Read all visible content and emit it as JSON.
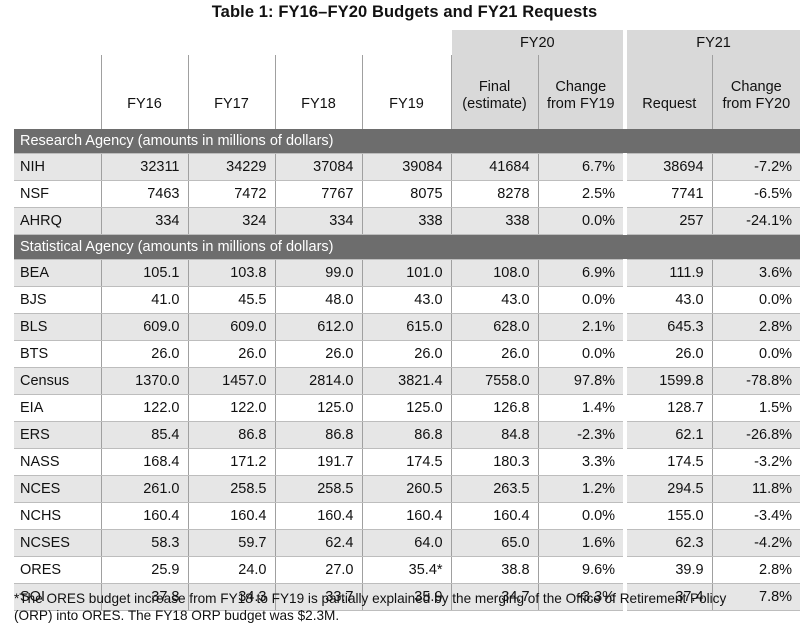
{
  "title": "Table 1: FY16–FY20 Budgets and FY21 Requests",
  "group_headers": {
    "fy20": "FY20",
    "fy21": "FY21"
  },
  "columns": {
    "fy16": "FY16",
    "fy17": "FY17",
    "fy18": "FY18",
    "fy19": "FY19",
    "fy20_final_line1": "Final",
    "fy20_final_line2": "(estimate)",
    "fy20_change_line1": "Change",
    "fy20_change_line2": "from FY19",
    "fy21_request": "Request",
    "fy21_change_line1": "Change",
    "fy21_change_line2": "from FY20"
  },
  "sections": [
    {
      "label": "Research Agency (amounts in millions of dollars)",
      "rows": [
        [
          "NIH",
          "32311",
          "34229",
          "37084",
          "39084",
          "41684",
          "6.7%",
          "38694",
          "-7.2%"
        ],
        [
          "NSF",
          "7463",
          "7472",
          "7767",
          "8075",
          "8278",
          "2.5%",
          "7741",
          "-6.5%"
        ],
        [
          "AHRQ",
          "334",
          "324",
          "334",
          "338",
          "338",
          "0.0%",
          "257",
          "-24.1%"
        ]
      ]
    },
    {
      "label": "Statistical Agency (amounts in millions of dollars)",
      "rows": [
        [
          "BEA",
          "105.1",
          "103.8",
          "99.0",
          "101.0",
          "108.0",
          "6.9%",
          "111.9",
          "3.6%"
        ],
        [
          "BJS",
          "41.0",
          "45.5",
          "48.0",
          "43.0",
          "43.0",
          "0.0%",
          "43.0",
          "0.0%"
        ],
        [
          "BLS",
          "609.0",
          "609.0",
          "612.0",
          "615.0",
          "628.0",
          "2.1%",
          "645.3",
          "2.8%"
        ],
        [
          "BTS",
          "26.0",
          "26.0",
          "26.0",
          "26.0",
          "26.0",
          "0.0%",
          "26.0",
          "0.0%"
        ],
        [
          "Census",
          "1370.0",
          "1457.0",
          "2814.0",
          "3821.4",
          "7558.0",
          "97.8%",
          "1599.8",
          "-78.8%"
        ],
        [
          "EIA",
          "122.0",
          "122.0",
          "125.0",
          "125.0",
          "126.8",
          "1.4%",
          "128.7",
          "1.5%"
        ],
        [
          "ERS",
          "85.4",
          "86.8",
          "86.8",
          "86.8",
          "84.8",
          "-2.3%",
          "62.1",
          "-26.8%"
        ],
        [
          "NASS",
          "168.4",
          "171.2",
          "191.7",
          "174.5",
          "180.3",
          "3.3%",
          "174.5",
          "-3.2%"
        ],
        [
          "NCES",
          "261.0",
          "258.5",
          "258.5",
          "260.5",
          "263.5",
          "1.2%",
          "294.5",
          "11.8%"
        ],
        [
          "NCHS",
          "160.4",
          "160.4",
          "160.4",
          "160.4",
          "160.4",
          "0.0%",
          "155.0",
          "-3.4%"
        ],
        [
          "NCSES",
          "58.3",
          "59.7",
          "62.4",
          "64.0",
          "65.0",
          "1.6%",
          "62.3",
          "-4.2%"
        ],
        [
          "ORES",
          "25.9",
          "24.0",
          "27.0",
          "35.4*",
          "38.8",
          "9.6%",
          "39.9",
          "2.8%"
        ],
        [
          "SOI",
          "37.8",
          "34.3",
          "33.7",
          "35.9",
          "34.7",
          "-3.3%",
          "37.4",
          "7.8%"
        ]
      ]
    }
  ],
  "footnote_line1": "*The ORES budget increase from FY18 to FY19 is partially explained by the merging of the Office of Retirement Policy",
  "footnote_line2": "(ORP) into ORES. The FY18 ORP budget was $2.3M."
}
